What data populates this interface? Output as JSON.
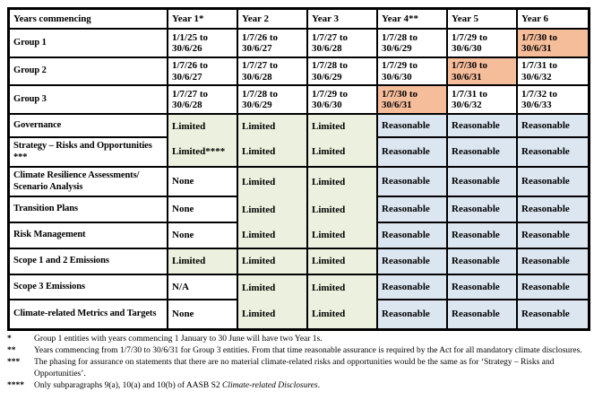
{
  "colors": {
    "limited_bg": "#EBF1DE",
    "reasonable_bg": "#DCE6F1",
    "highlight_bg": "#F6BD9B",
    "border": "#000000"
  },
  "table": {
    "columns": [
      "Years commencing",
      "Year 1*",
      "Year 2",
      "Year 3",
      "Year 4**",
      "Year 5",
      "Year 6"
    ],
    "group_rows": [
      {
        "label": "Group 1",
        "dates": [
          {
            "text": "1/1/25 to 30/6/26",
            "highlight": false
          },
          {
            "text": "1/7/26 to 30/6/27",
            "highlight": false
          },
          {
            "text": "1/7/27 to 30/6/28",
            "highlight": false
          },
          {
            "text": "1/7/28 to 30/6/29",
            "highlight": false
          },
          {
            "text": "1/7/29 to 30/6/30",
            "highlight": false
          },
          {
            "text": "1/7/30 to 30/6/31",
            "highlight": true
          }
        ]
      },
      {
        "label": "Group 2",
        "dates": [
          {
            "text": "1/7/26 to 30/6/27",
            "highlight": false
          },
          {
            "text": "1/7/27 to 30/6/28",
            "highlight": false
          },
          {
            "text": "1/7/28 to 30/6/29",
            "highlight": false
          },
          {
            "text": "1/7/29 to 30/6/30",
            "highlight": false
          },
          {
            "text": "1/7/30 to 30/6/31",
            "highlight": true
          },
          {
            "text": "1/7/31 to 30/6/32",
            "highlight": false
          }
        ]
      },
      {
        "label": "Group 3",
        "dates": [
          {
            "text": "1/7/27 to 30/6/28",
            "highlight": false
          },
          {
            "text": "1/7/28 to 30/6/29",
            "highlight": false
          },
          {
            "text": "1/7/29 to 30/6/30",
            "highlight": false
          },
          {
            "text": "1/7/30 to 30/6/31",
            "highlight": true
          },
          {
            "text": "1/7/31 to 30/6/32",
            "highlight": false
          },
          {
            "text": "1/7/32 to 30/6/33",
            "highlight": false
          }
        ]
      }
    ],
    "assurance_rows": [
      {
        "label": "Governance",
        "values": [
          "Limited",
          "Limited",
          "Limited",
          "Reasonable",
          "Reasonable",
          "Reasonable"
        ]
      },
      {
        "label": "Strategy – Risks and Opportunities ***",
        "values": [
          "Limited****",
          "Limited",
          "Limited",
          "Reasonable",
          "Reasonable",
          "Reasonable"
        ]
      },
      {
        "label": "Climate Resilience Assessments/ Scenario Analysis",
        "values": [
          "None",
          "Limited",
          "Limited",
          "Reasonable",
          "Reasonable",
          "Reasonable"
        ]
      },
      {
        "label": "Transition Plans",
        "values": [
          "None",
          "Limited",
          "Limited",
          "Reasonable",
          "Reasonable",
          "Reasonable"
        ]
      },
      {
        "label": "Risk Management",
        "values": [
          "None",
          "Limited",
          "Limited",
          "Reasonable",
          "Reasonable",
          "Reasonable"
        ]
      },
      {
        "label": "Scope 1 and 2 Emissions",
        "values": [
          "Limited",
          "Limited",
          "Limited",
          "Reasonable",
          "Reasonable",
          "Reasonable"
        ]
      },
      {
        "label": "Scope 3 Emissions",
        "values": [
          "N/A",
          "Limited",
          "Limited",
          "Reasonable",
          "Reasonable",
          "Reasonable"
        ]
      },
      {
        "label": "Climate-related Metrics and Targets",
        "values": [
          "None",
          "Limited",
          "Limited",
          "Reasonable",
          "Reasonable",
          "Reasonable"
        ]
      }
    ]
  },
  "footnotes": [
    {
      "marker": "*",
      "parts": [
        {
          "text": "Group 1 entities with years commencing 1 January to 30 June will have two Year 1s.",
          "italic": false
        }
      ]
    },
    {
      "marker": "**",
      "parts": [
        {
          "text": "Years commencing from 1/7/30 to 30/6/31 for Group 3 entities. From that time reasonable assurance is required by the Act for all mandatory climate disclosures.",
          "italic": false
        }
      ]
    },
    {
      "marker": "***",
      "parts": [
        {
          "text": "The phasing for assurance on statements that there are no material climate-related risks and opportunities would be the same as for ‘Strategy – Risks and Opportunities’.",
          "italic": false
        }
      ]
    },
    {
      "marker": "****",
      "parts": [
        {
          "text": "Only subparagraphs 9(a), 10(a) and 10(b) of AASB S2 ",
          "italic": false
        },
        {
          "text": "Climate-related Disclosures",
          "italic": true
        },
        {
          "text": ".",
          "italic": false
        }
      ]
    }
  ]
}
